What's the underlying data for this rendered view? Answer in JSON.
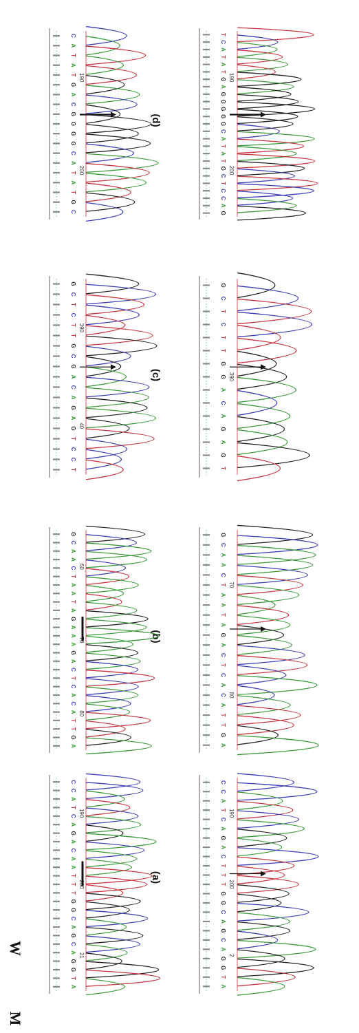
{
  "figure": {
    "side_labels": {
      "wild": "W",
      "mutant": "M"
    },
    "panels": [
      {
        "label": "(a)",
        "wild": {
          "sequence": "CCATCAGACAATTTGGCAGCAGGTA",
          "ticks": [
            "190",
            "200",
            "21"
          ]
        },
        "mutant": {
          "sequence": "CCATCAGACTTTGGCAGCAGGTA",
          "ticks": [
            "190",
            "200",
            "2"
          ]
        }
      },
      {
        "label": "(b)",
        "wild": {
          "sequence": "GCAACTAATAGAAAGACTCACATTGA",
          "ticks": [
            "60",
            "70",
            "80"
          ]
        },
        "mutant": {
          "sequence": "GCAACTAATAGACTCACATTGA",
          "ticks": [
            "70",
            "80"
          ]
        }
      },
      {
        "label": "(c)",
        "wild": {
          "sequence": "GCTCTTGCGACAGAGTCCT",
          "ticks": [
            "390",
            "40"
          ]
        },
        "mutant": {
          "sequence": "GCTCTTGGACAGAGT",
          "ticks": [
            "390"
          ]
        }
      },
      {
        "label": "(d)",
        "wild": {
          "sequence": "CATATGACGGGGCATATGC",
          "ticks": [
            "190",
            "200"
          ]
        },
        "mutant": {
          "sequence": "TCATATGAGGGGGCATATGCTCCAG",
          "ticks": [
            "190",
            "200"
          ]
        }
      }
    ],
    "base_colors": {
      "A": "#3a9a3a",
      "C": "#3a3ab8",
      "G": "#222222",
      "T": "#c8323c"
    }
  }
}
